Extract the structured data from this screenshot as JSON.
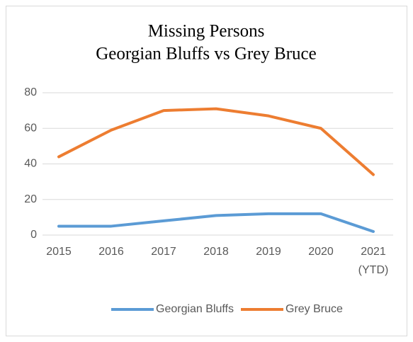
{
  "chart_data": {
    "type": "line",
    "title": "Missing Persons",
    "subtitle": "Georgian Bluffs vs Grey Bruce",
    "categories": [
      "2015",
      "2016",
      "2017",
      "2018",
      "2019",
      "2020",
      "2021 (YTD)"
    ],
    "series": [
      {
        "name": "Georgian Bluffs",
        "color": "#5b9bd5",
        "values": [
          5,
          5,
          8,
          11,
          12,
          12,
          2
        ]
      },
      {
        "name": "Grey Bruce",
        "color": "#ed7d31",
        "values": [
          44,
          59,
          70,
          71,
          67,
          60,
          34
        ]
      }
    ],
    "ylim": [
      0,
      80
    ],
    "yticks": [
      0,
      20,
      40,
      60,
      80
    ],
    "grid": true,
    "legend": "bottom"
  }
}
